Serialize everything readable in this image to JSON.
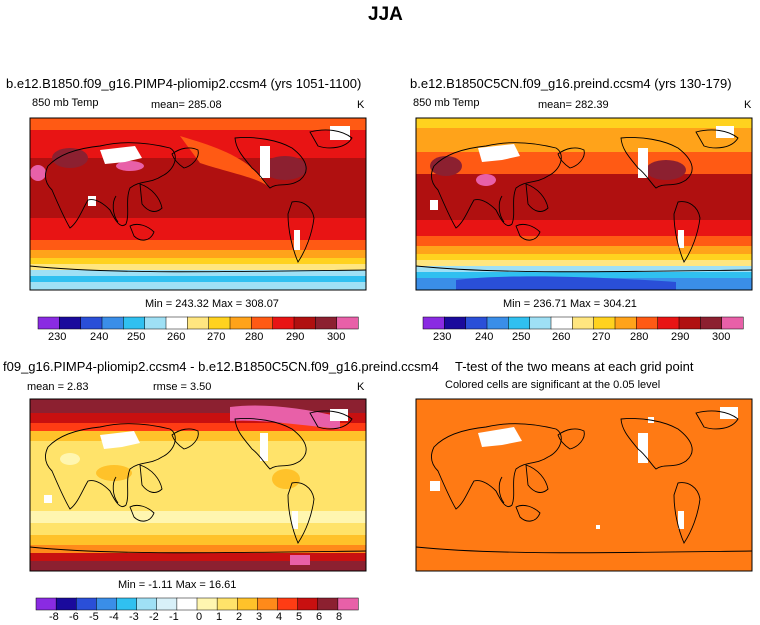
{
  "figure": {
    "title": "JJA"
  },
  "panels": [
    {
      "title": "b.e12.B1850.f09_g16.PIMP4-pliomip2.ccsm4 (yrs 1051-1100)",
      "left_label": "850 mb Temp",
      "center_label": "mean= 285.08",
      "units": "K",
      "min_max": "Min = 243.32  Max = 308.07",
      "colorbar_labels": [
        "230",
        "240",
        "250",
        "260",
        "270",
        "280",
        "290",
        "300"
      ]
    },
    {
      "title": "b.e12.B1850C5CN.f09_g16.preind.ccsm4 (yrs 130-179)",
      "left_label": "850 mb Temp",
      "center_label": "mean= 282.39",
      "units": "K",
      "min_max": "Min = 236.71  Max = 304.21",
      "colorbar_labels": [
        "230",
        "240",
        "250",
        "260",
        "270",
        "280",
        "290",
        "300"
      ]
    },
    {
      "title": "f09_g16.PIMP4-pliomip2.ccsm4 - b.e12.B1850C5CN.f09_g16.preind.ccsm4",
      "left_label": "mean =    2.83",
      "center_label": "rmse =    3.50",
      "units": "K",
      "min_max": "Min =  -1.11  Max =   16.61",
      "colorbar_labels": [
        "-8",
        "-6",
        "-5",
        "-4",
        "-3",
        "-2",
        "-1",
        "0",
        "1",
        "2",
        "3",
        "4",
        "5",
        "6",
        "8"
      ]
    },
    {
      "title": "T-test of the two means at each grid point",
      "subtitle": "Colored cells are significant at the 0.05 level"
    }
  ],
  "colors": {
    "temp_scale": [
      "#8a2be2",
      "#1a0a9c",
      "#2a4fd8",
      "#3a8ee8",
      "#30c0f0",
      "#9fe0f5",
      "#ffffff",
      "#ffe680",
      "#ffd21f",
      "#ffa31a",
      "#ff5a14",
      "#e81414",
      "#b01010",
      "#8c2030",
      "#e860a8"
    ],
    "diff_scale": [
      "#8a2be2",
      "#1a0a9c",
      "#2a4fd8",
      "#3a8ee8",
      "#30c0f0",
      "#9fe0f5",
      "#d8f0f8",
      "#ffffff",
      "#fff6b0",
      "#ffe36a",
      "#ffc22a",
      "#ff8a1a",
      "#ff3c14",
      "#c81010",
      "#8c2030",
      "#e860a8"
    ],
    "ttest_fill": "#ff7a14"
  }
}
